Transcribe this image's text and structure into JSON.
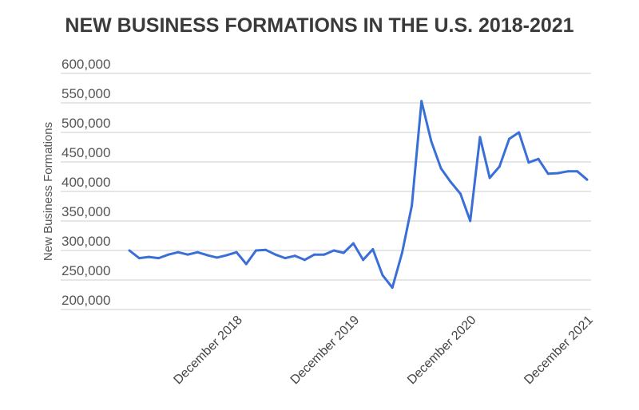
{
  "chart_data": {
    "type": "line",
    "title": "NEW BUSINESS FORMATIONS IN THE U.S. 2018-2021",
    "xlabel": "",
    "ylabel": "New Business Formations",
    "ylim": [
      200000,
      600000
    ],
    "grid": true,
    "yticks": [
      200000,
      250000,
      300000,
      350000,
      400000,
      450000,
      500000,
      550000,
      600000
    ],
    "ytick_labels": [
      "200,000",
      "250,000",
      "300,000",
      "350,000",
      "400,000",
      "450,000",
      "500,000",
      "550,000",
      "600,000"
    ],
    "xtick_labels": [
      {
        "label": "December 2018",
        "index": 11
      },
      {
        "label": "December 2019",
        "index": 23
      },
      {
        "label": "December 2020",
        "index": 35
      },
      {
        "label": "December 2021",
        "index": 47
      }
    ],
    "series": [
      {
        "name": "New Business Formations",
        "color": "#3a6fd8",
        "values": [
          300000,
          287000,
          289000,
          287000,
          293000,
          297000,
          293000,
          297000,
          292000,
          288000,
          292000,
          297000,
          277000,
          300000,
          301000,
          293000,
          287000,
          291000,
          284000,
          293000,
          293000,
          300000,
          296000,
          312000,
          284000,
          302000,
          258000,
          237000,
          296000,
          376000,
          553000,
          485000,
          439000,
          416000,
          396000,
          350000,
          492000,
          423000,
          442000,
          489000,
          500000,
          449000,
          455000,
          430000,
          431000,
          434000,
          434000,
          420000
        ]
      }
    ]
  }
}
